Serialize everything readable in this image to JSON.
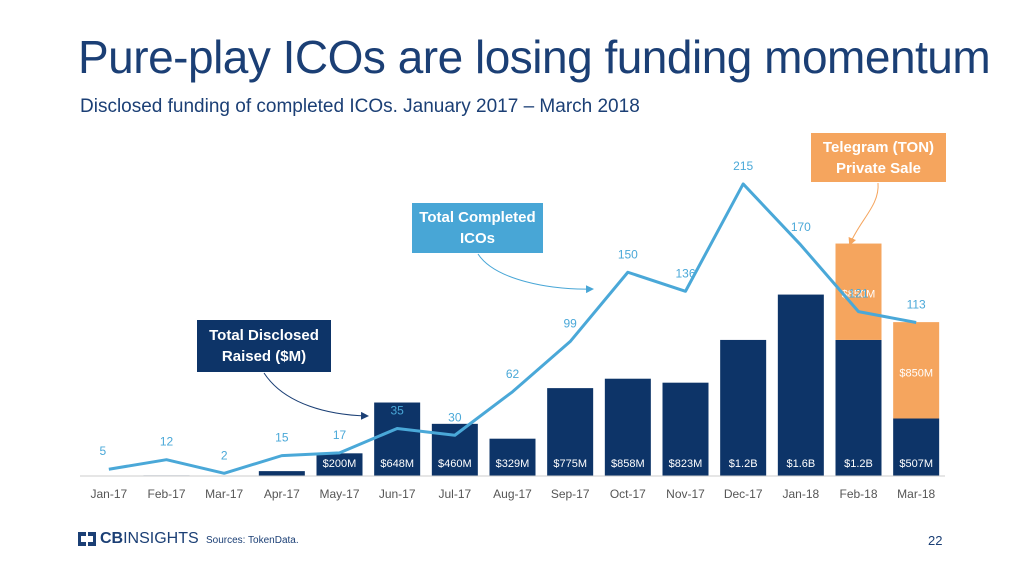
{
  "slide": {
    "title": "Pure-play ICOs are losing funding momentum",
    "subtitle": "Disclosed funding of completed ICOs. January 2017 – March 2018",
    "brand_bold": "CB",
    "brand_rest": "INSIGHTS",
    "sources": "Sources: TokenData.",
    "page_number": "22"
  },
  "callouts": {
    "raised": "Total Disclosed\nRaised ($M)",
    "icos": "Total Completed\nICOs",
    "telegram": "Telegram (TON)\nPrivate Sale"
  },
  "colors": {
    "navy": "#0d3468",
    "orange": "#f5a55e",
    "line": "#4aa8d8",
    "callout_raised": "#0d3468",
    "callout_icos": "#48a6d6",
    "callout_telegram": "#f5a55e",
    "axis": "#cccccc",
    "tick_text": "#555555"
  },
  "chart_data": {
    "type": "bar+line",
    "title": "Disclosed funding of completed ICOs. January 2017 – March 2018",
    "categories": [
      "Jan-17",
      "Feb-17",
      "Mar-17",
      "Apr-17",
      "May-17",
      "Jun-17",
      "Jul-17",
      "Aug-17",
      "Sep-17",
      "Oct-17",
      "Nov-17",
      "Dec-17",
      "Jan-18",
      "Feb-18",
      "Mar-18"
    ],
    "series": [
      {
        "name": "Total Disclosed Raised ($M)",
        "kind": "bar",
        "values": [
          0,
          5,
          0,
          43,
          200,
          648,
          460,
          329,
          775,
          858,
          823,
          1200,
          1600,
          1200,
          507
        ],
        "labels": [
          "",
          "",
          "",
          "",
          "$200M",
          "$648M",
          "$460M",
          "$329M",
          "$775M",
          "$858M",
          "$823M",
          "$1.2B",
          "$1.6B",
          "$1.2B",
          "$507M"
        ]
      },
      {
        "name": "Telegram (TON) Private Sale ($M)",
        "kind": "bar-stacked",
        "values": [
          0,
          0,
          0,
          0,
          0,
          0,
          0,
          0,
          0,
          0,
          0,
          0,
          0,
          850,
          850
        ],
        "labels": [
          "",
          "",
          "",
          "",
          "",
          "",
          "",
          "",
          "",
          "",
          "",
          "",
          "",
          "$850M",
          "$850M"
        ]
      },
      {
        "name": "Total Completed ICOs",
        "kind": "line",
        "values": [
          5,
          12,
          2,
          15,
          17,
          35,
          30,
          62,
          99,
          150,
          136,
          215,
          170,
          121,
          113
        ]
      }
    ],
    "bar_ylim": [
      0,
      2875
    ],
    "line_ylim": [
      0,
      240
    ]
  }
}
